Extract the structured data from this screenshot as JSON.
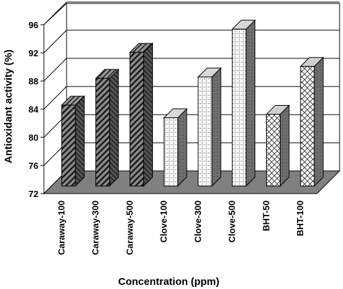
{
  "chart_data": {
    "type": "bar",
    "title": "",
    "xlabel": "Concentration (ppm)",
    "ylabel": "Antioxidant activity (%)",
    "ylim": [
      72,
      96
    ],
    "yticks": [
      72,
      76,
      80,
      84,
      88,
      92,
      96
    ],
    "categories": [
      "Caraway-100",
      "Caraway-300",
      "Caraway-500",
      "Clove-100",
      "Clove-300",
      "Clove-500",
      "BHT-50",
      "BHT-100"
    ],
    "values": [
      83.5,
      87.3,
      91.0,
      81.7,
      87.5,
      94.3,
      82.2,
      89.0
    ],
    "grid": true,
    "legend": "none",
    "style": "3d",
    "fills": [
      "diagonal-dark",
      "diagonal-dark",
      "diagonal-dark",
      "dotted-grid",
      "dotted-grid",
      "dotted-grid",
      "crosshatch",
      "crosshatch"
    ],
    "colors": {
      "floor": "#808080",
      "wall": "#ffffff",
      "grid": "#000000",
      "bar_side": "#707070"
    }
  }
}
